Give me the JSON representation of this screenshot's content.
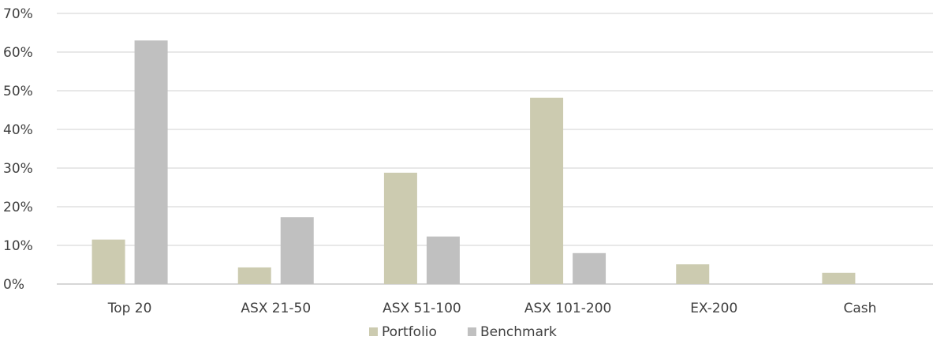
{
  "chart_data": {
    "type": "bar",
    "categories": [
      "Top 20",
      "ASX 21-50",
      "ASX 51-100",
      "ASX 101-200",
      "EX-200",
      "Cash"
    ],
    "series": [
      {
        "name": "Portfolio",
        "color": "#cccbb0",
        "values": [
          11.5,
          4.3,
          28.8,
          48.2,
          5.1,
          2.9
        ]
      },
      {
        "name": "Benchmark",
        "color": "#c0c0c0",
        "values": [
          63.0,
          17.3,
          12.3,
          8.0,
          0,
          0
        ]
      }
    ],
    "y_ticks": [
      "0%",
      "10%",
      "20%",
      "30%",
      "40%",
      "50%",
      "60%",
      "70%"
    ],
    "ylim": [
      0,
      70
    ],
    "grid": true,
    "legend_position": "bottom"
  }
}
